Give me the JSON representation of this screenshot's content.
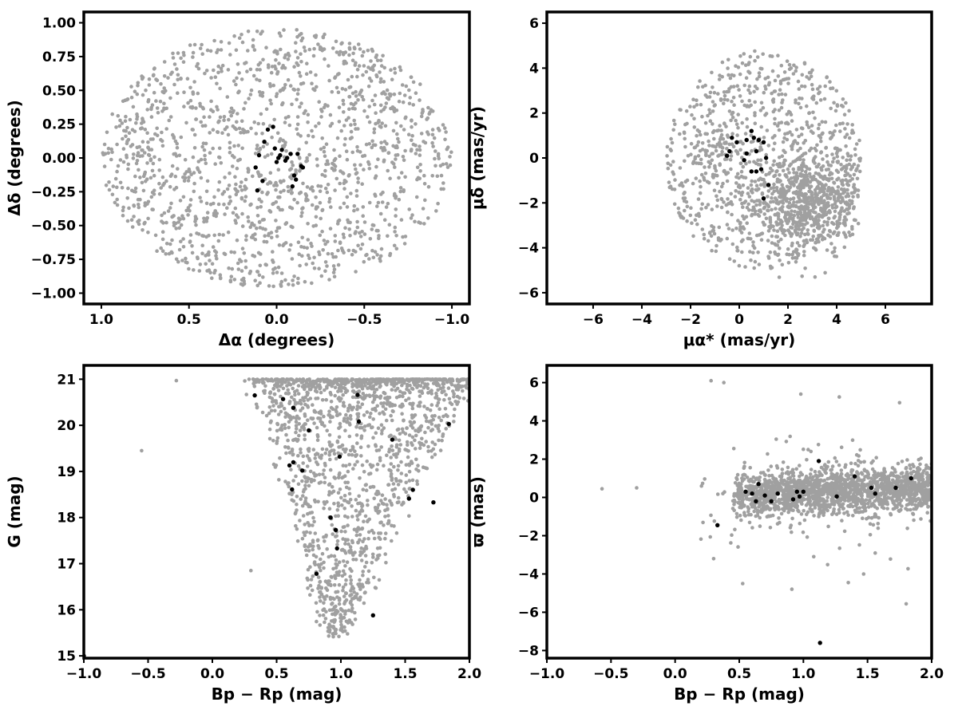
{
  "colors": {
    "field": "#a0a0a0",
    "member": "#000000",
    "axis": "#000000",
    "background": "#ffffff"
  },
  "chart_data": [
    {
      "id": "position",
      "type": "scatter",
      "xlabel": "Δα (degrees)",
      "ylabel": "Δδ (degrees)",
      "xlim": [
        1.1,
        -1.1
      ],
      "ylim": [
        -1.08,
        1.08
      ],
      "x_inverted": true,
      "xticks": [
        1.0,
        0.5,
        0.0,
        -0.5,
        -1.0
      ],
      "xtick_labels": [
        "1.0",
        "0.5",
        "0.0",
        "−0.5",
        "−1.0"
      ],
      "yticks": [
        1.0,
        0.75,
        0.5,
        0.25,
        0.0,
        -0.25,
        -0.5,
        -0.75,
        -1.0
      ],
      "ytick_labels": [
        "1.00",
        "0.75",
        "0.50",
        "0.25",
        "0.00",
        "−0.25",
        "−0.50",
        "−0.75",
        "−1.00"
      ],
      "grid": false,
      "series": [
        {
          "role": "field",
          "distribution": "uniform disk",
          "center": [
            0,
            0
          ],
          "radius": 1.0,
          "count": 1500
        },
        {
          "role": "member",
          "x": [
            0.02,
            0.05,
            0.07,
            0.01,
            -0.03,
            -0.02,
            -0.01,
            0.0,
            -0.05,
            -0.08,
            -0.12,
            -0.14,
            -0.15,
            -0.1,
            -0.11,
            -0.09,
            -0.06,
            0.1,
            0.12,
            0.08,
            0.11
          ],
          "y": [
            0.23,
            0.21,
            0.12,
            0.07,
            0.06,
            0.02,
            0.0,
            -0.03,
            -0.02,
            0.03,
            0.03,
            -0.06,
            -0.07,
            -0.13,
            -0.16,
            -0.21,
            0.0,
            0.02,
            -0.07,
            -0.17,
            -0.24
          ]
        }
      ]
    },
    {
      "id": "proper-motion",
      "type": "scatter",
      "xlabel": "μα* (mas/yr)",
      "ylabel": "μδ (mas/yr)",
      "xlim": [
        -7.9,
        7.9
      ],
      "ylim": [
        -6.5,
        6.5
      ],
      "xticks": [
        -6,
        -4,
        -2,
        0,
        2,
        4,
        6
      ],
      "xtick_labels": [
        "−6",
        "−4",
        "−2",
        "0",
        "2",
        "4",
        "6"
      ],
      "yticks": [
        6,
        4,
        2,
        0,
        -2,
        -4,
        -6
      ],
      "ytick_labels": [
        "6",
        "4",
        "2",
        "0",
        "−2",
        "−4",
        "−6"
      ],
      "grid": false,
      "series": [
        {
          "role": "field",
          "distribution": "uniform disk plus cluster",
          "center": [
            1.0,
            -0.1
          ],
          "radius": 4.0,
          "cluster_center": [
            2.8,
            -2.0
          ],
          "count": 1500
        },
        {
          "role": "member",
          "x": [
            -0.5,
            -0.4,
            -0.3,
            -0.1,
            0.2,
            0.3,
            0.3,
            0.5,
            0.5,
            0.6,
            0.7,
            0.8,
            0.9,
            1.0,
            1.0,
            1.1,
            1.2,
            0.7
          ],
          "y": [
            0.1,
            0.3,
            0.9,
            0.7,
            -0.1,
            0.8,
            0.2,
            1.2,
            -0.6,
            0.9,
            0.3,
            0.8,
            -0.5,
            0.7,
            -1.8,
            0.0,
            -1.2,
            -0.6
          ]
        }
      ]
    },
    {
      "id": "cmd",
      "type": "scatter",
      "xlabel": "Bp − Rp (mag)",
      "ylabel": "G (mag)",
      "xlim": [
        -1.0,
        2.0
      ],
      "ylim": [
        14.95,
        21.3
      ],
      "y_inverted": false,
      "xticks": [
        -1.0,
        -0.5,
        0.0,
        0.5,
        1.0,
        1.5,
        2.0
      ],
      "xtick_labels": [
        "−1.0",
        "−0.5",
        "0.0",
        "0.5",
        "1.0",
        "1.5",
        "2.0"
      ],
      "yticks": [
        21,
        20,
        19,
        18,
        17,
        16,
        15
      ],
      "ytick_labels": [
        "21",
        "20",
        "19",
        "18",
        "17",
        "16",
        "15"
      ],
      "grid": false,
      "series": [
        {
          "role": "field",
          "distribution": "fan widening to faint magnitudes",
          "count": 1600
        },
        {
          "role": "member",
          "x": [
            0.33,
            0.55,
            0.63,
            0.75,
            0.6,
            0.63,
            0.7,
            0.62,
            0.99,
            1.13,
            1.14,
            1.4,
            1.53,
            1.56,
            1.72,
            1.84,
            0.92,
            0.96,
            0.97,
            0.81,
            1.25,
            -1.0
          ],
          "y": [
            20.65,
            20.57,
            20.38,
            19.89,
            19.13,
            19.2,
            19.02,
            18.61,
            19.32,
            20.66,
            20.08,
            19.69,
            18.41,
            18.6,
            18.33,
            20.03,
            18.0,
            17.73,
            17.33,
            16.78,
            15.88,
            15.0
          ]
        }
      ]
    },
    {
      "id": "parallax",
      "type": "scatter",
      "xlabel": "Bp − Rp (mag)",
      "ylabel": "ϖ (mas)",
      "xlim": [
        -1.0,
        2.0
      ],
      "ylim": [
        -8.4,
        6.9
      ],
      "xticks": [
        -1.0,
        -0.5,
        0.0,
        0.5,
        1.0,
        1.5,
        2.0
      ],
      "xtick_labels": [
        "−1.0",
        "−0.5",
        "0.0",
        "0.5",
        "1.0",
        "1.5",
        "2.0"
      ],
      "yticks": [
        6,
        4,
        2,
        0,
        -2,
        -4,
        -6,
        -8
      ],
      "ytick_labels": [
        "6",
        "4",
        "2",
        "0",
        "−2",
        "−4",
        "−6",
        "−8"
      ],
      "grid": false,
      "series": [
        {
          "role": "field",
          "distribution": "band near zero parallax",
          "count": 1600
        },
        {
          "role": "member",
          "x": [
            0.33,
            0.55,
            0.6,
            0.63,
            0.65,
            0.7,
            0.75,
            0.8,
            0.92,
            0.95,
            0.97,
            1.0,
            1.12,
            1.13,
            1.26,
            1.4,
            1.53,
            1.56,
            1.72,
            1.84
          ],
          "y": [
            -1.45,
            0.3,
            0.2,
            -0.2,
            0.7,
            0.1,
            -0.2,
            0.2,
            -0.1,
            0.3,
            0.05,
            0.3,
            1.9,
            -7.6,
            0.05,
            1.1,
            0.5,
            0.2,
            0.5,
            1.0
          ]
        }
      ]
    }
  ]
}
